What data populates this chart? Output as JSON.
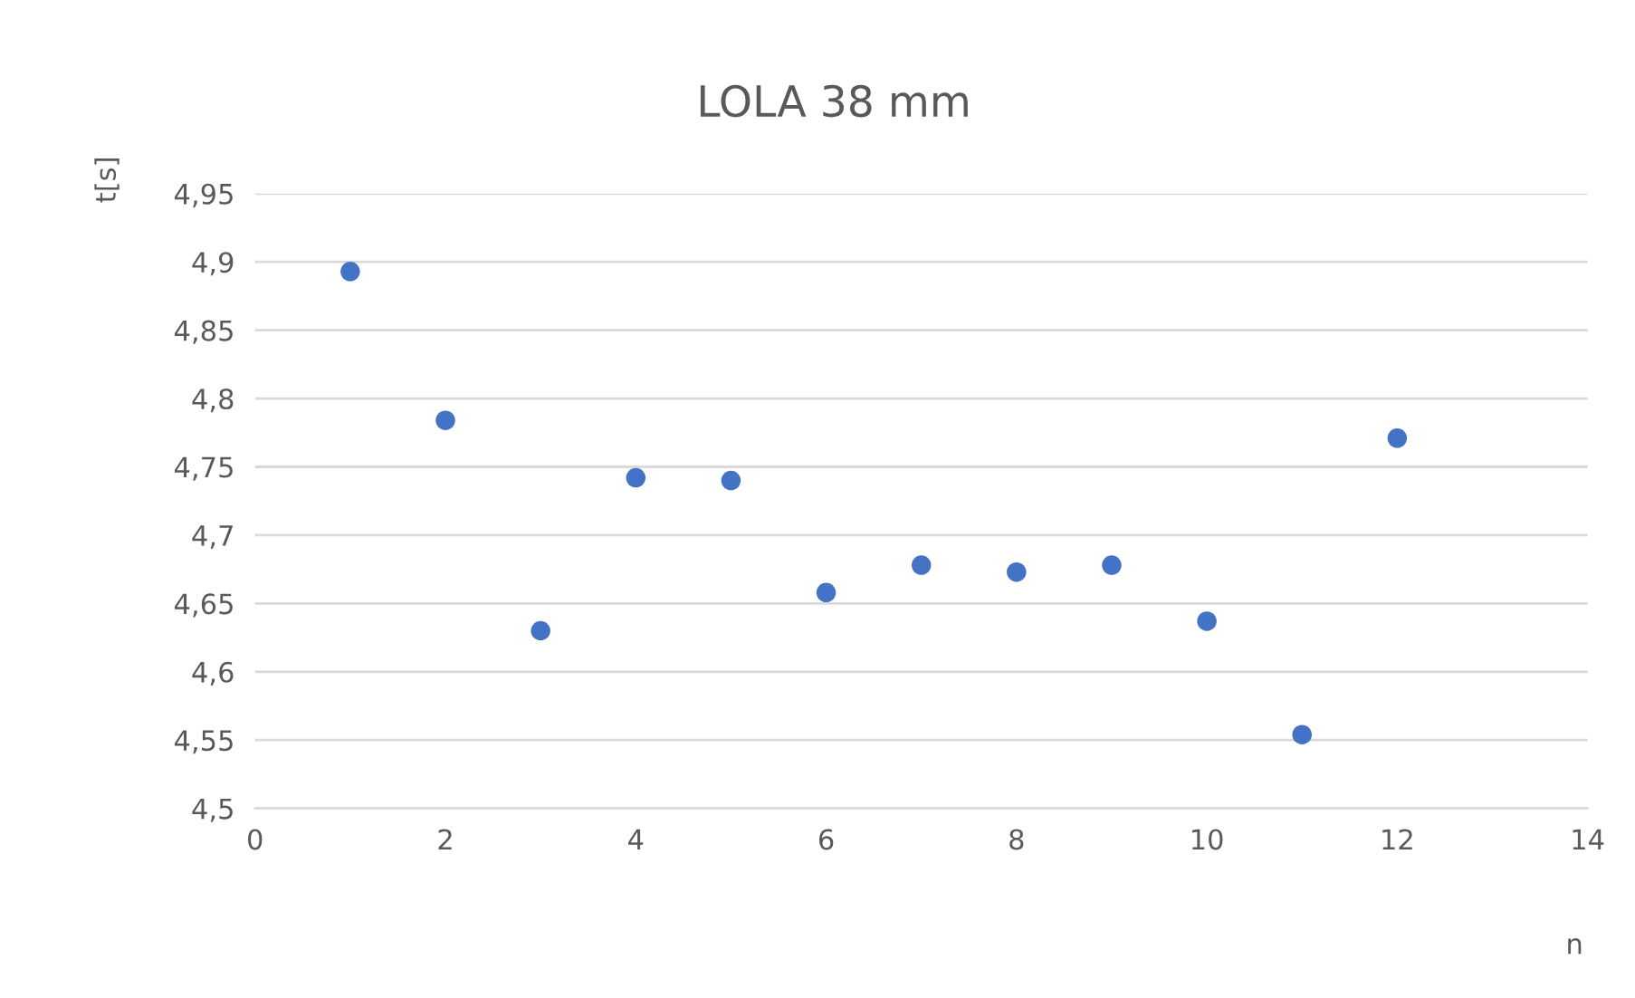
{
  "chart_data": {
    "type": "scatter",
    "title": "LOLA 38 mm",
    "xlabel": "n",
    "ylabel": "t[s]",
    "x": [
      1,
      2,
      3,
      4,
      5,
      6,
      7,
      8,
      9,
      10,
      11,
      12
    ],
    "series": [
      {
        "color": "#4472c4",
        "values": [
          4.893,
          4.784,
          4.63,
          4.742,
          4.74,
          4.658,
          4.678,
          4.673,
          4.678,
          4.637,
          4.554,
          4.771
        ]
      }
    ],
    "xlim": [
      0,
      14
    ],
    "xticks": [
      0,
      2,
      4,
      6,
      8,
      10,
      12,
      14
    ],
    "ylim": [
      4.5,
      4.95
    ],
    "yticks": [
      {
        "value": 4.5,
        "label": "4,5"
      },
      {
        "value": 4.55,
        "label": "4,55"
      },
      {
        "value": 4.6,
        "label": "4,6"
      },
      {
        "value": 4.65,
        "label": "4,65"
      },
      {
        "value": 4.7,
        "label": "4,7"
      },
      {
        "value": 4.75,
        "label": "4,75"
      },
      {
        "value": 4.8,
        "label": "4,8"
      },
      {
        "value": 4.85,
        "label": "4,85"
      },
      {
        "value": 4.9,
        "label": "4,9"
      },
      {
        "value": 4.95,
        "label": "4,95"
      }
    ],
    "grid": "y",
    "marker": "circle"
  }
}
